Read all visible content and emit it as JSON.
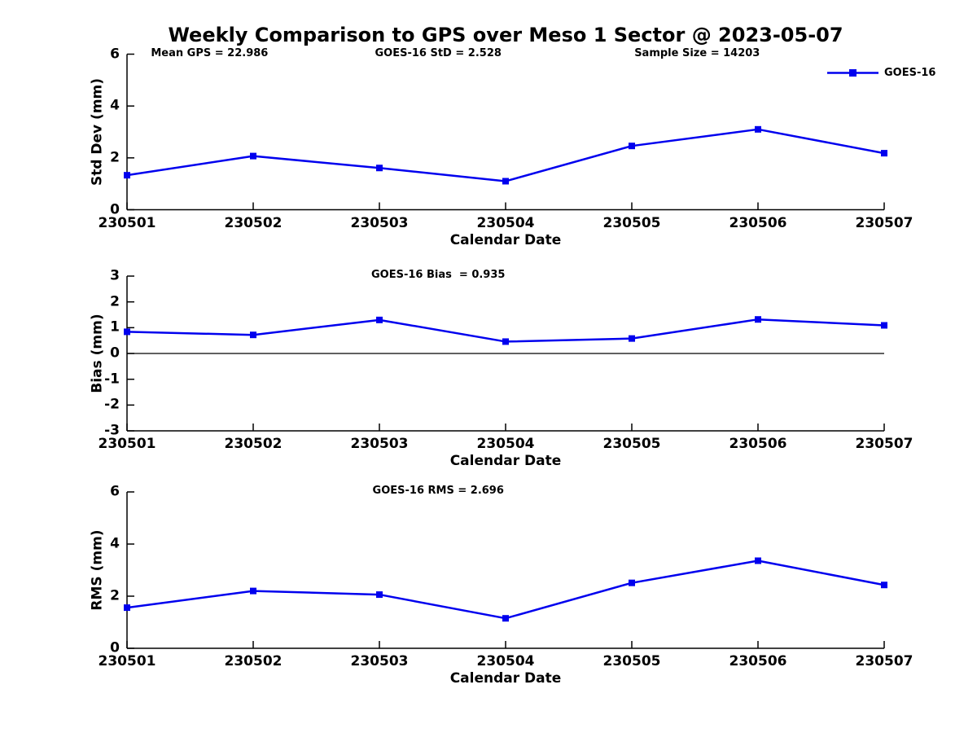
{
  "title": "Weekly Comparison to GPS over Meso 1 Sector @ 2023-05-07",
  "legend": {
    "label": "GOES-16",
    "position": "top-right"
  },
  "colors": {
    "series": "#0000ee",
    "axis": "#000000",
    "background": "#ffffff"
  },
  "chart_data": [
    {
      "type": "line",
      "title": "",
      "annotations": [
        "Mean GPS = 22.986",
        "GOES-16 StD = 2.528",
        "Sample Size = 14203"
      ],
      "categories": [
        "230501",
        "230502",
        "230503",
        "230504",
        "230505",
        "230506",
        "230507"
      ],
      "series": [
        {
          "name": "GOES-16",
          "color": "#0000ee",
          "marker": "square",
          "values": [
            1.33,
            2.07,
            1.61,
            1.1,
            2.46,
            3.1,
            2.18
          ]
        }
      ],
      "xlabel": "Calendar Date",
      "ylabel": "Std Dev (mm)",
      "ylim": [
        0,
        6
      ],
      "yticks": [
        0,
        2,
        4,
        6
      ],
      "zero_line": false,
      "grid": false,
      "legend_entries": [
        "GOES-16"
      ]
    },
    {
      "type": "line",
      "title": "",
      "annotations": [
        "GOES-16 Bias  = 0.935"
      ],
      "categories": [
        "230501",
        "230502",
        "230503",
        "230504",
        "230505",
        "230506",
        "230507"
      ],
      "series": [
        {
          "name": "GOES-16",
          "color": "#0000ee",
          "marker": "square",
          "values": [
            0.84,
            0.72,
            1.3,
            0.46,
            0.58,
            1.32,
            1.09
          ]
        }
      ],
      "xlabel": "Calendar Date",
      "ylabel": "Bias (mm)",
      "ylim": [
        -3,
        3
      ],
      "yticks": [
        -3,
        -2,
        -1,
        0,
        1,
        2,
        3
      ],
      "zero_line": true,
      "grid": false,
      "legend_entries": []
    },
    {
      "type": "line",
      "title": "",
      "annotations": [
        "GOES-16 RMS = 2.696"
      ],
      "categories": [
        "230501",
        "230502",
        "230503",
        "230504",
        "230505",
        "230506",
        "230507"
      ],
      "series": [
        {
          "name": "GOES-16",
          "color": "#0000ee",
          "marker": "square",
          "values": [
            1.56,
            2.2,
            2.06,
            1.15,
            2.51,
            3.36,
            2.43
          ]
        }
      ],
      "xlabel": "Calendar Date",
      "ylabel": "RMS (mm)",
      "ylim": [
        0,
        6
      ],
      "yticks": [
        0,
        2,
        4,
        6
      ],
      "zero_line": false,
      "grid": false,
      "legend_entries": []
    }
  ]
}
